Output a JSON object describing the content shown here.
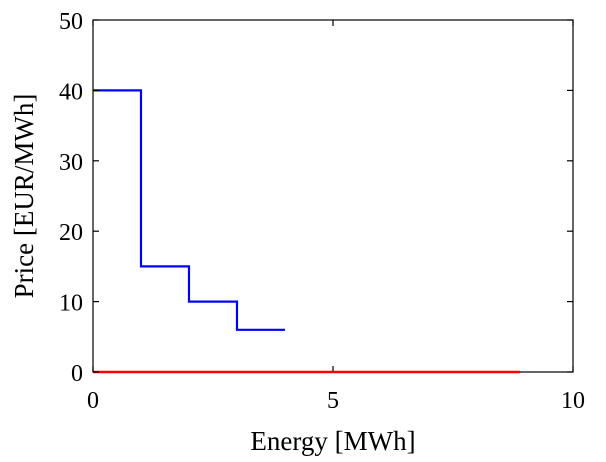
{
  "chart_data": {
    "type": "line",
    "title": "",
    "xlabel": "Energy [MWh]",
    "ylabel": "Price [EUR/MWh]",
    "xlim": [
      0,
      10
    ],
    "ylim": [
      0,
      50
    ],
    "xticks": [
      "0",
      "5",
      "10"
    ],
    "yticks": [
      "0",
      "10",
      "20",
      "30",
      "40",
      "50"
    ],
    "grid": false,
    "legend": "none",
    "series": [
      {
        "color": "#0000ff",
        "step": true,
        "x": [
          0,
          1,
          1,
          2,
          2,
          3,
          3,
          4
        ],
        "y": [
          40,
          40,
          15,
          15,
          10,
          10,
          6,
          6
        ]
      },
      {
        "color": "#ff0000",
        "step": false,
        "x": [
          0,
          8.9
        ],
        "y": [
          0,
          0
        ]
      }
    ]
  }
}
